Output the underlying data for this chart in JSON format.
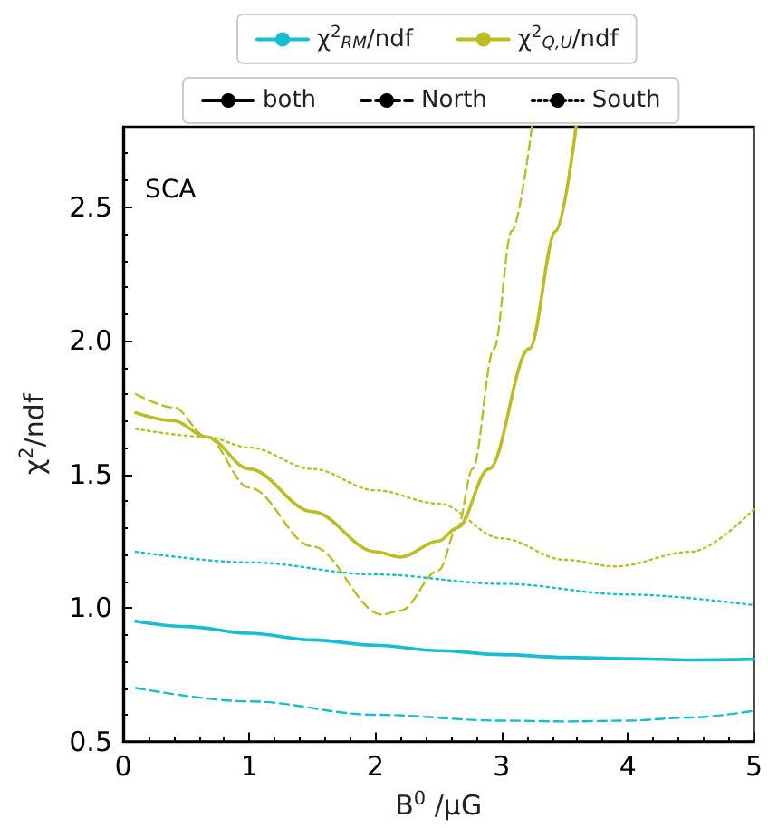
{
  "chart_data": {
    "type": "line",
    "xlabel": "B$^{0}$ /μG",
    "ylabel": "χ$^{2}$/ndf",
    "annotations": [
      "SCA"
    ],
    "legend": "top",
    "xlim": [
      0,
      5
    ],
    "xticks": [
      0,
      1,
      2,
      3,
      4,
      5
    ],
    "ylim": [
      0.5,
      2.8
    ],
    "yticks": [
      0.5,
      {
        "value": 1,
        "label": "1.0"
      },
      1.5,
      {
        "value": 2,
        "label": "2.0"
      },
      2.5
    ],
    "series": [
      {
        "color": "#17becf",
        "line_style": "solid",
        "x": [
          0.1,
          0.5,
          1,
          1.5,
          2,
          2.5,
          3,
          3.5,
          4,
          4.5,
          5
        ],
        "values": [
          0.95,
          0.93,
          0.905,
          0.88,
          0.86,
          0.84,
          0.825,
          0.815,
          0.81,
          0.805,
          0.808
        ]
      },
      {
        "color": "#17becf",
        "line_style": "dashed",
        "x": [
          0.1,
          1,
          2,
          3,
          3.5,
          4,
          4.5,
          5
        ],
        "values": [
          0.7,
          0.65,
          0.6,
          0.578,
          0.575,
          0.578,
          0.59,
          0.615
        ]
      },
      {
        "color": "#17becf",
        "line_style": "dotted",
        "x": [
          0.1,
          1,
          2,
          3,
          4,
          5
        ],
        "values": [
          1.21,
          1.17,
          1.125,
          1.09,
          1.05,
          1.01
        ]
      },
      {
        "color": "#bcbd22",
        "line_style": "solid",
        "x": [
          0.1,
          0.4,
          0.66,
          1,
          1.5,
          2,
          2.2,
          2.5,
          2.65,
          2.9,
          3.22,
          3.43,
          3.59
        ],
        "values": [
          1.73,
          1.7,
          1.64,
          1.52,
          1.36,
          1.21,
          1.19,
          1.25,
          1.3,
          1.52,
          1.97,
          2.41,
          2.8
        ]
      },
      {
        "color": "#bcbd22",
        "line_style": "dashed",
        "x": [
          0.1,
          0.4,
          0.66,
          1,
          1.5,
          2.05,
          2.2,
          2.5,
          2.65,
          2.77,
          2.94,
          3.08,
          3.24
        ],
        "values": [
          1.8,
          1.75,
          1.64,
          1.45,
          1.23,
          0.975,
          0.99,
          1.14,
          1.3,
          1.52,
          1.97,
          2.41,
          2.8
        ]
      },
      {
        "color": "#bcbd22",
        "line_style": "dotted",
        "x": [
          0.1,
          0.66,
          1,
          1.5,
          2,
          2.5,
          3,
          3.5,
          3.9,
          4.5,
          5
        ],
        "values": [
          1.67,
          1.64,
          1.6,
          1.52,
          1.44,
          1.39,
          1.26,
          1.18,
          1.155,
          1.21,
          1.37
        ]
      },
      {
        "name": "χ$^{2}$$_{RM}$/ndf",
        "color": "#17becf",
        "line_style": "solid"
      },
      {
        "name": "χ$^{2}$$_{Q,U}$/ndf",
        "color": "#bcbd22",
        "line_style": "solid"
      },
      {
        "name": "both",
        "color": "#000000",
        "line_style": "solid"
      },
      {
        "name": "North",
        "color": "#000000",
        "line_style": "dashed"
      },
      {
        "name": "South",
        "color": "#000000",
        "line_style": "dotted"
      }
    ]
  }
}
